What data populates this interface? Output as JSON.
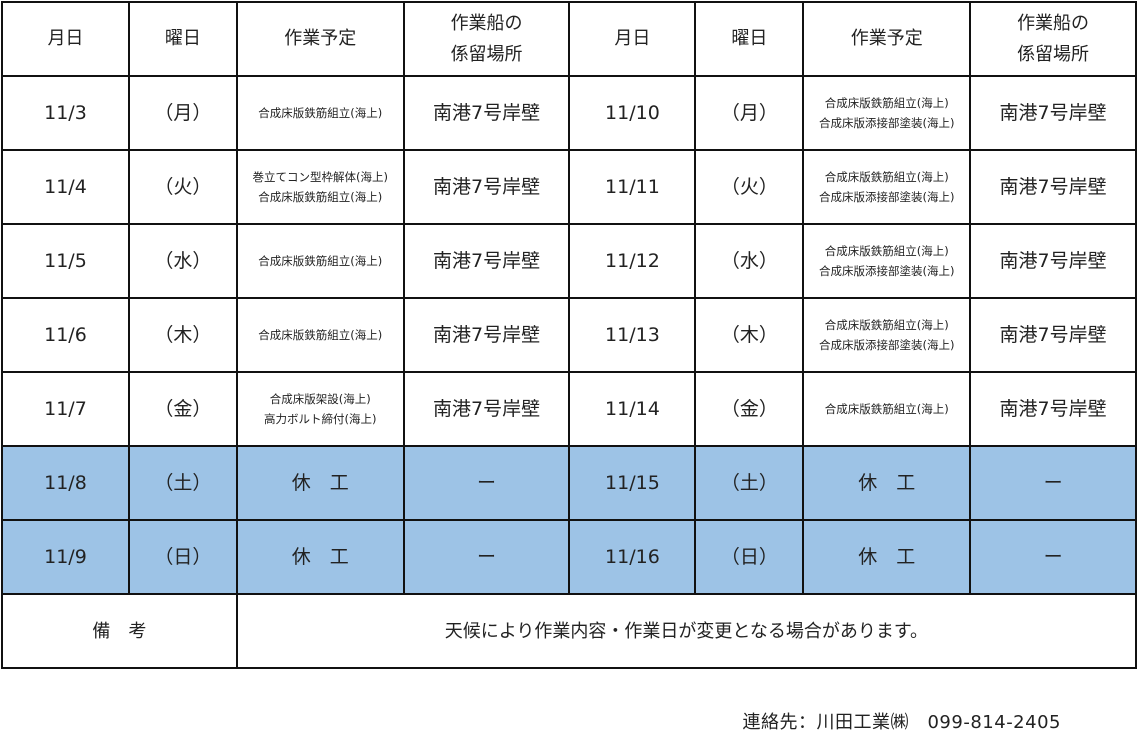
{
  "headers": [
    "月日",
    "曜日",
    "作業予定",
    "作業船の\n係留場所",
    "月日",
    "曜日",
    "作業予定",
    "作業船の\n係留場所"
  ],
  "rows": [
    {
      "off": false,
      "cells": [
        "11/3",
        "（月）",
        "合成床版鉄筋組立(海上)",
        "南港7号岸壁",
        "11/10",
        "（月）",
        "合成床版鉄筋組立(海上)\n合成床版添接部塗装(海上)",
        "南港7号岸壁"
      ]
    },
    {
      "off": false,
      "cells": [
        "11/4",
        "（火）",
        "巻立てコン型枠解体(海上)\n合成床版鉄筋組立(海上)",
        "南港7号岸壁",
        "11/11",
        "（火）",
        "合成床版鉄筋組立(海上)\n合成床版添接部塗装(海上)",
        "南港7号岸壁"
      ]
    },
    {
      "off": false,
      "cells": [
        "11/5",
        "（水）",
        "合成床版鉄筋組立(海上)",
        "南港7号岸壁",
        "11/12",
        "（水）",
        "合成床版鉄筋組立(海上)\n合成床版添接部塗装(海上)",
        "南港7号岸壁"
      ]
    },
    {
      "off": false,
      "cells": [
        "11/6",
        "（木）",
        "合成床版鉄筋組立(海上)",
        "南港7号岸壁",
        "11/13",
        "（木）",
        "合成床版鉄筋組立(海上)\n合成床版添接部塗装(海上)",
        "南港7号岸壁"
      ]
    },
    {
      "off": false,
      "cells": [
        "11/7",
        "（金）",
        "合成床版架設(海上)\n高力ボルト締付(海上)",
        "南港7号岸壁",
        "11/14",
        "（金）",
        "合成床版鉄筋組立(海上)",
        "南港7号岸壁"
      ]
    },
    {
      "off": true,
      "cells": [
        "11/8",
        "（土）",
        "休　工",
        "ー",
        "11/15",
        "（土）",
        "休　工",
        "ー"
      ]
    },
    {
      "off": true,
      "cells": [
        "11/9",
        "（日）",
        "休　工",
        "ー",
        "11/16",
        "（日）",
        "休　工",
        "ー"
      ]
    }
  ],
  "remarks": {
    "label": "備　考",
    "text": "天候により作業内容・作業日が変更となる場合があります。"
  },
  "contact": "連絡先：川田工業㈱　099-814-2405",
  "colors": {
    "holiday_row": "#9dc3e6",
    "border": "#111111"
  }
}
